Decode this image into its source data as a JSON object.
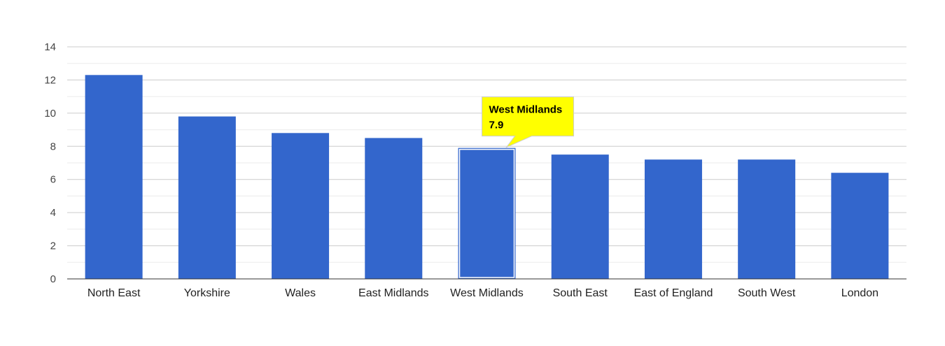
{
  "chart_data": {
    "type": "bar",
    "title": "",
    "xlabel": "",
    "ylabel": "",
    "categories": [
      "North East",
      "Yorkshire",
      "Wales",
      "East Midlands",
      "West Midlands",
      "South East",
      "East of England",
      "South West",
      "London"
    ],
    "values": [
      12.3,
      9.8,
      8.8,
      8.5,
      7.9,
      7.5,
      7.2,
      7.2,
      6.4
    ],
    "ylim": [
      0,
      14
    ],
    "yticks": [
      "0",
      "2",
      "4",
      "6",
      "8",
      "10",
      "12",
      "14"
    ],
    "grid": true,
    "bar_color": "#3366cc",
    "highlighted_index": 4,
    "tooltip": {
      "title": "West Midlands",
      "value": "7.9",
      "background": "#ffff00"
    }
  }
}
